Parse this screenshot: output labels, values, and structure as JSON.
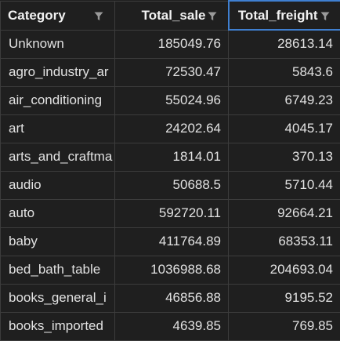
{
  "table": {
    "columns": [
      {
        "label": "Category",
        "align": "left"
      },
      {
        "label": "Total_sale",
        "align": "right"
      },
      {
        "label": "Total_freight",
        "align": "right"
      }
    ],
    "rows": [
      [
        "Unknown",
        "185049.76",
        "28613.14"
      ],
      [
        "agro_industry_ar",
        "72530.47",
        "5843.6"
      ],
      [
        "air_conditioning",
        "55024.96",
        "6749.23"
      ],
      [
        "art",
        "24202.64",
        "4045.17"
      ],
      [
        "arts_and_craftma",
        "1814.01",
        "370.13"
      ],
      [
        "audio",
        "50688.5",
        "5710.44"
      ],
      [
        "auto",
        "592720.11",
        "92664.21"
      ],
      [
        "baby",
        "411764.89",
        "68353.11"
      ],
      [
        "bed_bath_table",
        "1036988.68",
        "204693.04"
      ],
      [
        "books_general_i",
        "46856.88",
        "9195.52"
      ],
      [
        "books_imported",
        "4639.85",
        "769.85"
      ]
    ]
  },
  "icons": {
    "filter": "filter-funnel-icon"
  },
  "colors": {
    "background": "#1f1f1f",
    "grid_line": "#3c3c3c",
    "active_header_border": "#3f7fd0",
    "text": "#e2e2e2",
    "icon": "#9a9a9a"
  }
}
